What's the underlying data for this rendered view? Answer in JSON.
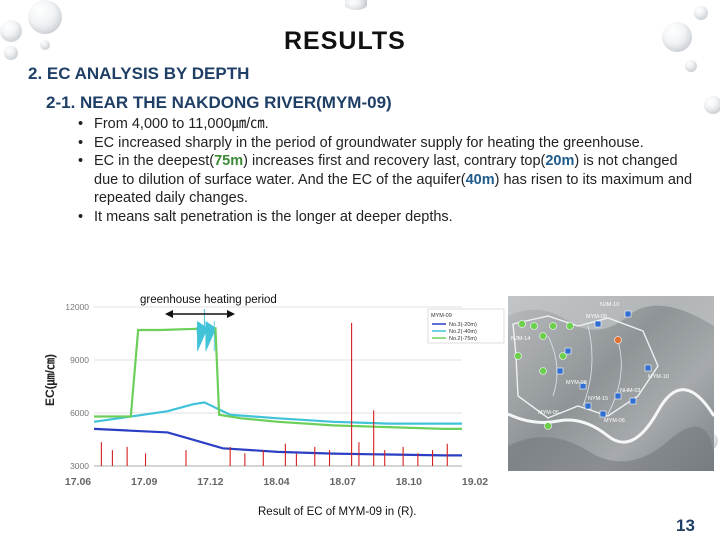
{
  "slide": {
    "title": "RESULTS",
    "section": "2. EC ANALYSIS BY DEPTH",
    "subsection": "2-1. NEAR THE NAKDONG RIVER(MYM-09)",
    "bullets": {
      "b1": "From 4,000 to 11,000㎛/㎝.",
      "b2": "EC increased sharply in the period of groundwater supply for heating the greenhouse.",
      "b3_part1": "EC in the deepest(",
      "b3_deep": "75m",
      "b3_part2": ") increases first and recovery last, contrary top(",
      "b3_top": "20m",
      "b3_part3": ") is not changed due to dilution of surface water. And the EC of the aquifer(",
      "b3_aquifer": "40m",
      "b3_part4": ") has risen to its maximum and repeated daily changes.",
      "b4": " It means salt penetration is the longer at deeper depths."
    },
    "caption": "Result of EC of MYM-09 in (R).",
    "page_number": "13"
  },
  "chart_data": {
    "type": "line",
    "ylabel": "EC(㎛/㎝)",
    "y_ticks": [
      "12000",
      "9000",
      "6000",
      "3000"
    ],
    "ylim": [
      3000,
      12000
    ],
    "x_ticks": [
      "17.06",
      "17.09",
      "17.12",
      "18.04",
      "18.07",
      "18.10",
      "19.02"
    ],
    "annotation": "greenhouse heating period",
    "legend_title": "MYM-09",
    "series": [
      {
        "name": "No.3(-20m)",
        "color": "#2a3fc4",
        "x": [
          0.0,
          0.1,
          0.2,
          0.25,
          0.35,
          0.5,
          0.65,
          0.8,
          0.95,
          1.0
        ],
        "values": [
          5100,
          5000,
          4900,
          4600,
          4000,
          3800,
          3700,
          3650,
          3600,
          3600
        ]
      },
      {
        "name": "No.2(-40m)",
        "color": "#40c2d8",
        "x": [
          0.0,
          0.1,
          0.2,
          0.27,
          0.3,
          0.32,
          0.37,
          0.5,
          0.65,
          0.8,
          0.95,
          1.0
        ],
        "values": [
          5500,
          5800,
          6100,
          6500,
          6600,
          6400,
          5900,
          5700,
          5500,
          5400,
          5400,
          5400
        ]
      },
      {
        "name": "No.2(-75m)",
        "color": "#6ccf5a",
        "x": [
          0.0,
          0.1,
          0.12,
          0.18,
          0.33,
          0.34,
          0.4,
          0.5,
          0.65,
          0.8,
          0.95,
          1.0
        ],
        "values": [
          5800,
          5800,
          10700,
          10700,
          10800,
          5900,
          5700,
          5500,
          5300,
          5200,
          5100,
          5100
        ]
      }
    ],
    "grid": true,
    "legend_placement": "top-right"
  },
  "map": {
    "labels": [
      "MYM-09",
      "NJM-10",
      "NJM-14",
      "MYM-08",
      "NYM-15",
      "NHM-03",
      "MYM-05",
      "MYM-06",
      "MYM-10"
    ]
  },
  "colors": {
    "title_dark": "#111111",
    "heading_blue": "#1f3f66",
    "deep_green": "#3c8a35",
    "aquifer_blue": "#1f5b8c",
    "spike_red": "#d42020"
  }
}
